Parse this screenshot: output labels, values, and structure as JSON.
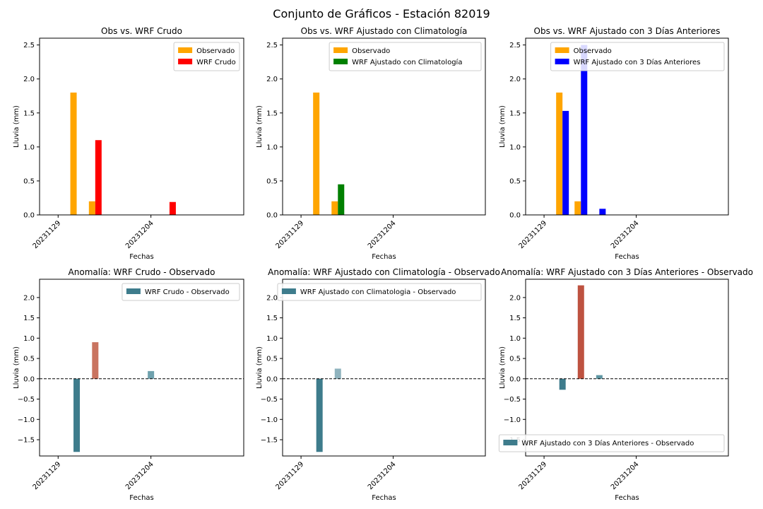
{
  "figure": {
    "title": "Conjunto de Gráficos - Estación 82019"
  },
  "colors": {
    "observed": "#FFA500",
    "wrf_crudo": "#FF0000",
    "wrf_clim": "#008000",
    "wrf_3dias": "#0000FF",
    "anom_neg_strong": "#3E7C8C",
    "anom_pos_strong": "#BE5240",
    "anom_pos_mid": "#C97460",
    "anom_pos_light": "#8FB3BE",
    "anom_pos_tiny": "#5E96A3"
  },
  "chart_data": [
    {
      "type": "bar",
      "title": "Obs vs. WRF Crudo",
      "xlabel": "Fechas",
      "ylabel": "Lluvia (mm)",
      "x_ticks": [
        "20231129",
        "20231204"
      ],
      "dates": [
        "20231130",
        "20231201",
        "20231205"
      ],
      "ylim": [
        0,
        2.6
      ],
      "yticks": [
        "0.0",
        "0.5",
        "1.0",
        "1.5",
        "2.0",
        "2.5"
      ],
      "legend_position": "upper right",
      "series": [
        {
          "name": "Observado",
          "values": [
            1.8,
            0.2,
            0.0
          ]
        },
        {
          "name": "WRF Crudo",
          "values": [
            0.0,
            1.1,
            0.19
          ]
        }
      ]
    },
    {
      "type": "bar",
      "title": "Obs vs. WRF Ajustado con Climatología",
      "xlabel": "Fechas",
      "ylabel": "Lluvia (mm)",
      "x_ticks": [
        "20231129",
        "20231204"
      ],
      "dates": [
        "20231130",
        "20231201",
        "20231205"
      ],
      "ylim": [
        0,
        2.6
      ],
      "yticks": [
        "0.0",
        "0.5",
        "1.0",
        "1.5",
        "2.0",
        "2.5"
      ],
      "legend_position": "upper right",
      "series": [
        {
          "name": "Observado",
          "values": [
            1.8,
            0.2,
            0.0
          ]
        },
        {
          "name": "WRF Ajustado con Climatología",
          "values": [
            0.0,
            0.45,
            0.0
          ]
        }
      ]
    },
    {
      "type": "bar",
      "title": "Obs vs. WRF Ajustado con 3 Días Anteriores",
      "xlabel": "Fechas",
      "ylabel": "Lluvia (mm)",
      "x_ticks": [
        "20231129",
        "20231204"
      ],
      "dates": [
        "20231130",
        "20231201",
        "20231202"
      ],
      "ylim": [
        0,
        2.6
      ],
      "yticks": [
        "0.0",
        "0.5",
        "1.0",
        "1.5",
        "2.0",
        "2.5"
      ],
      "legend_position": "upper right",
      "series": [
        {
          "name": "Observado",
          "values": [
            1.8,
            0.2,
            0.0
          ]
        },
        {
          "name": "WRF Ajustado con 3 Días Anteriores",
          "values": [
            1.53,
            2.5,
            0.09
          ]
        }
      ]
    },
    {
      "type": "bar",
      "title": "Anomalía: WRF Crudo - Observado",
      "xlabel": "Fechas",
      "ylabel": "Lluvia (mm)",
      "x_ticks": [
        "20231129",
        "20231204"
      ],
      "dates": [
        "20231130",
        "20231201",
        "20231204"
      ],
      "ylim": [
        -1.9,
        2.45
      ],
      "yticks": [
        "−1.5",
        "−1.0",
        "−0.5",
        "0.0",
        "0.5",
        "1.0",
        "1.5",
        "2.0"
      ],
      "legend_position": "upper right",
      "reference_line": 0,
      "series": [
        {
          "name": "WRF Crudo - Observado",
          "values": [
            -1.8,
            0.9,
            0.19
          ]
        }
      ]
    },
    {
      "type": "bar",
      "title": "Anomalía: WRF Ajustado con Climatología - Observado",
      "xlabel": "Fechas",
      "ylabel": "Lluvia (mm)",
      "x_ticks": [
        "20231129",
        "20231204"
      ],
      "dates": [
        "20231130",
        "20231201"
      ],
      "ylim": [
        -1.9,
        2.45
      ],
      "yticks": [
        "−1.5",
        "−1.0",
        "−0.5",
        "0.0",
        "0.5",
        "1.0",
        "1.5",
        "2.0"
      ],
      "legend_position": "upper right",
      "reference_line": 0,
      "series": [
        {
          "name": "WRF Ajustado con Climatologia - Observado",
          "values": [
            -1.8,
            0.25
          ]
        }
      ]
    },
    {
      "type": "bar",
      "title": "Anomalía: WRF Ajustado con 3 Días Anteriores - Observado",
      "xlabel": "Fechas",
      "ylabel": "Lluvia (mm)",
      "x_ticks": [
        "20231129",
        "20231204"
      ],
      "dates": [
        "20231130",
        "20231201",
        "20231202"
      ],
      "ylim": [
        -1.9,
        2.45
      ],
      "yticks": [
        "−1.5",
        "−1.0",
        "−0.5",
        "0.0",
        "0.5",
        "1.0",
        "1.5",
        "2.0"
      ],
      "legend_position": "lower right",
      "reference_line": 0,
      "series": [
        {
          "name": "WRF Ajustado con 3 Días Anteriores - Observado",
          "values": [
            -0.27,
            2.3,
            0.09
          ]
        }
      ]
    }
  ]
}
